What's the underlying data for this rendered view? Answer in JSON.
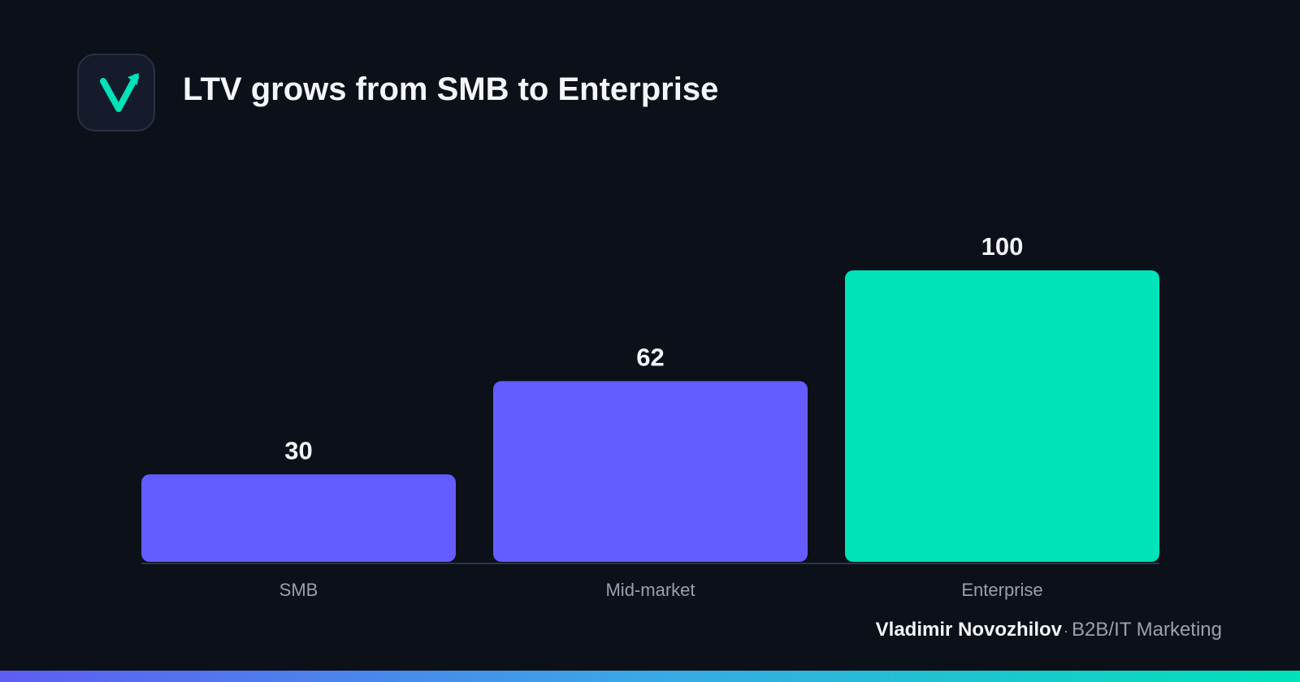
{
  "header": {
    "logo_icon": "checkmark-arrow-icon",
    "title": "LTV grows from SMB to Enterprise"
  },
  "colors": {
    "background": "#0b1019",
    "primary_bar": "#645cff",
    "highlight_bar": "#00e2b8",
    "text": "#f4f5f8",
    "muted_text": "#9aa0ae"
  },
  "chart_data": {
    "type": "bar",
    "categories": [
      "SMB",
      "Mid-market",
      "Enterprise"
    ],
    "values": [
      30,
      62,
      100
    ],
    "highlight_index": 2,
    "data_labels": [
      "30",
      "62",
      "100"
    ],
    "ylim": [
      0,
      100
    ],
    "grid": false,
    "legend": "none"
  },
  "footer": {
    "author": "Vladimir Novozhilov",
    "separator": "·",
    "role": "B2B/IT Marketing"
  }
}
